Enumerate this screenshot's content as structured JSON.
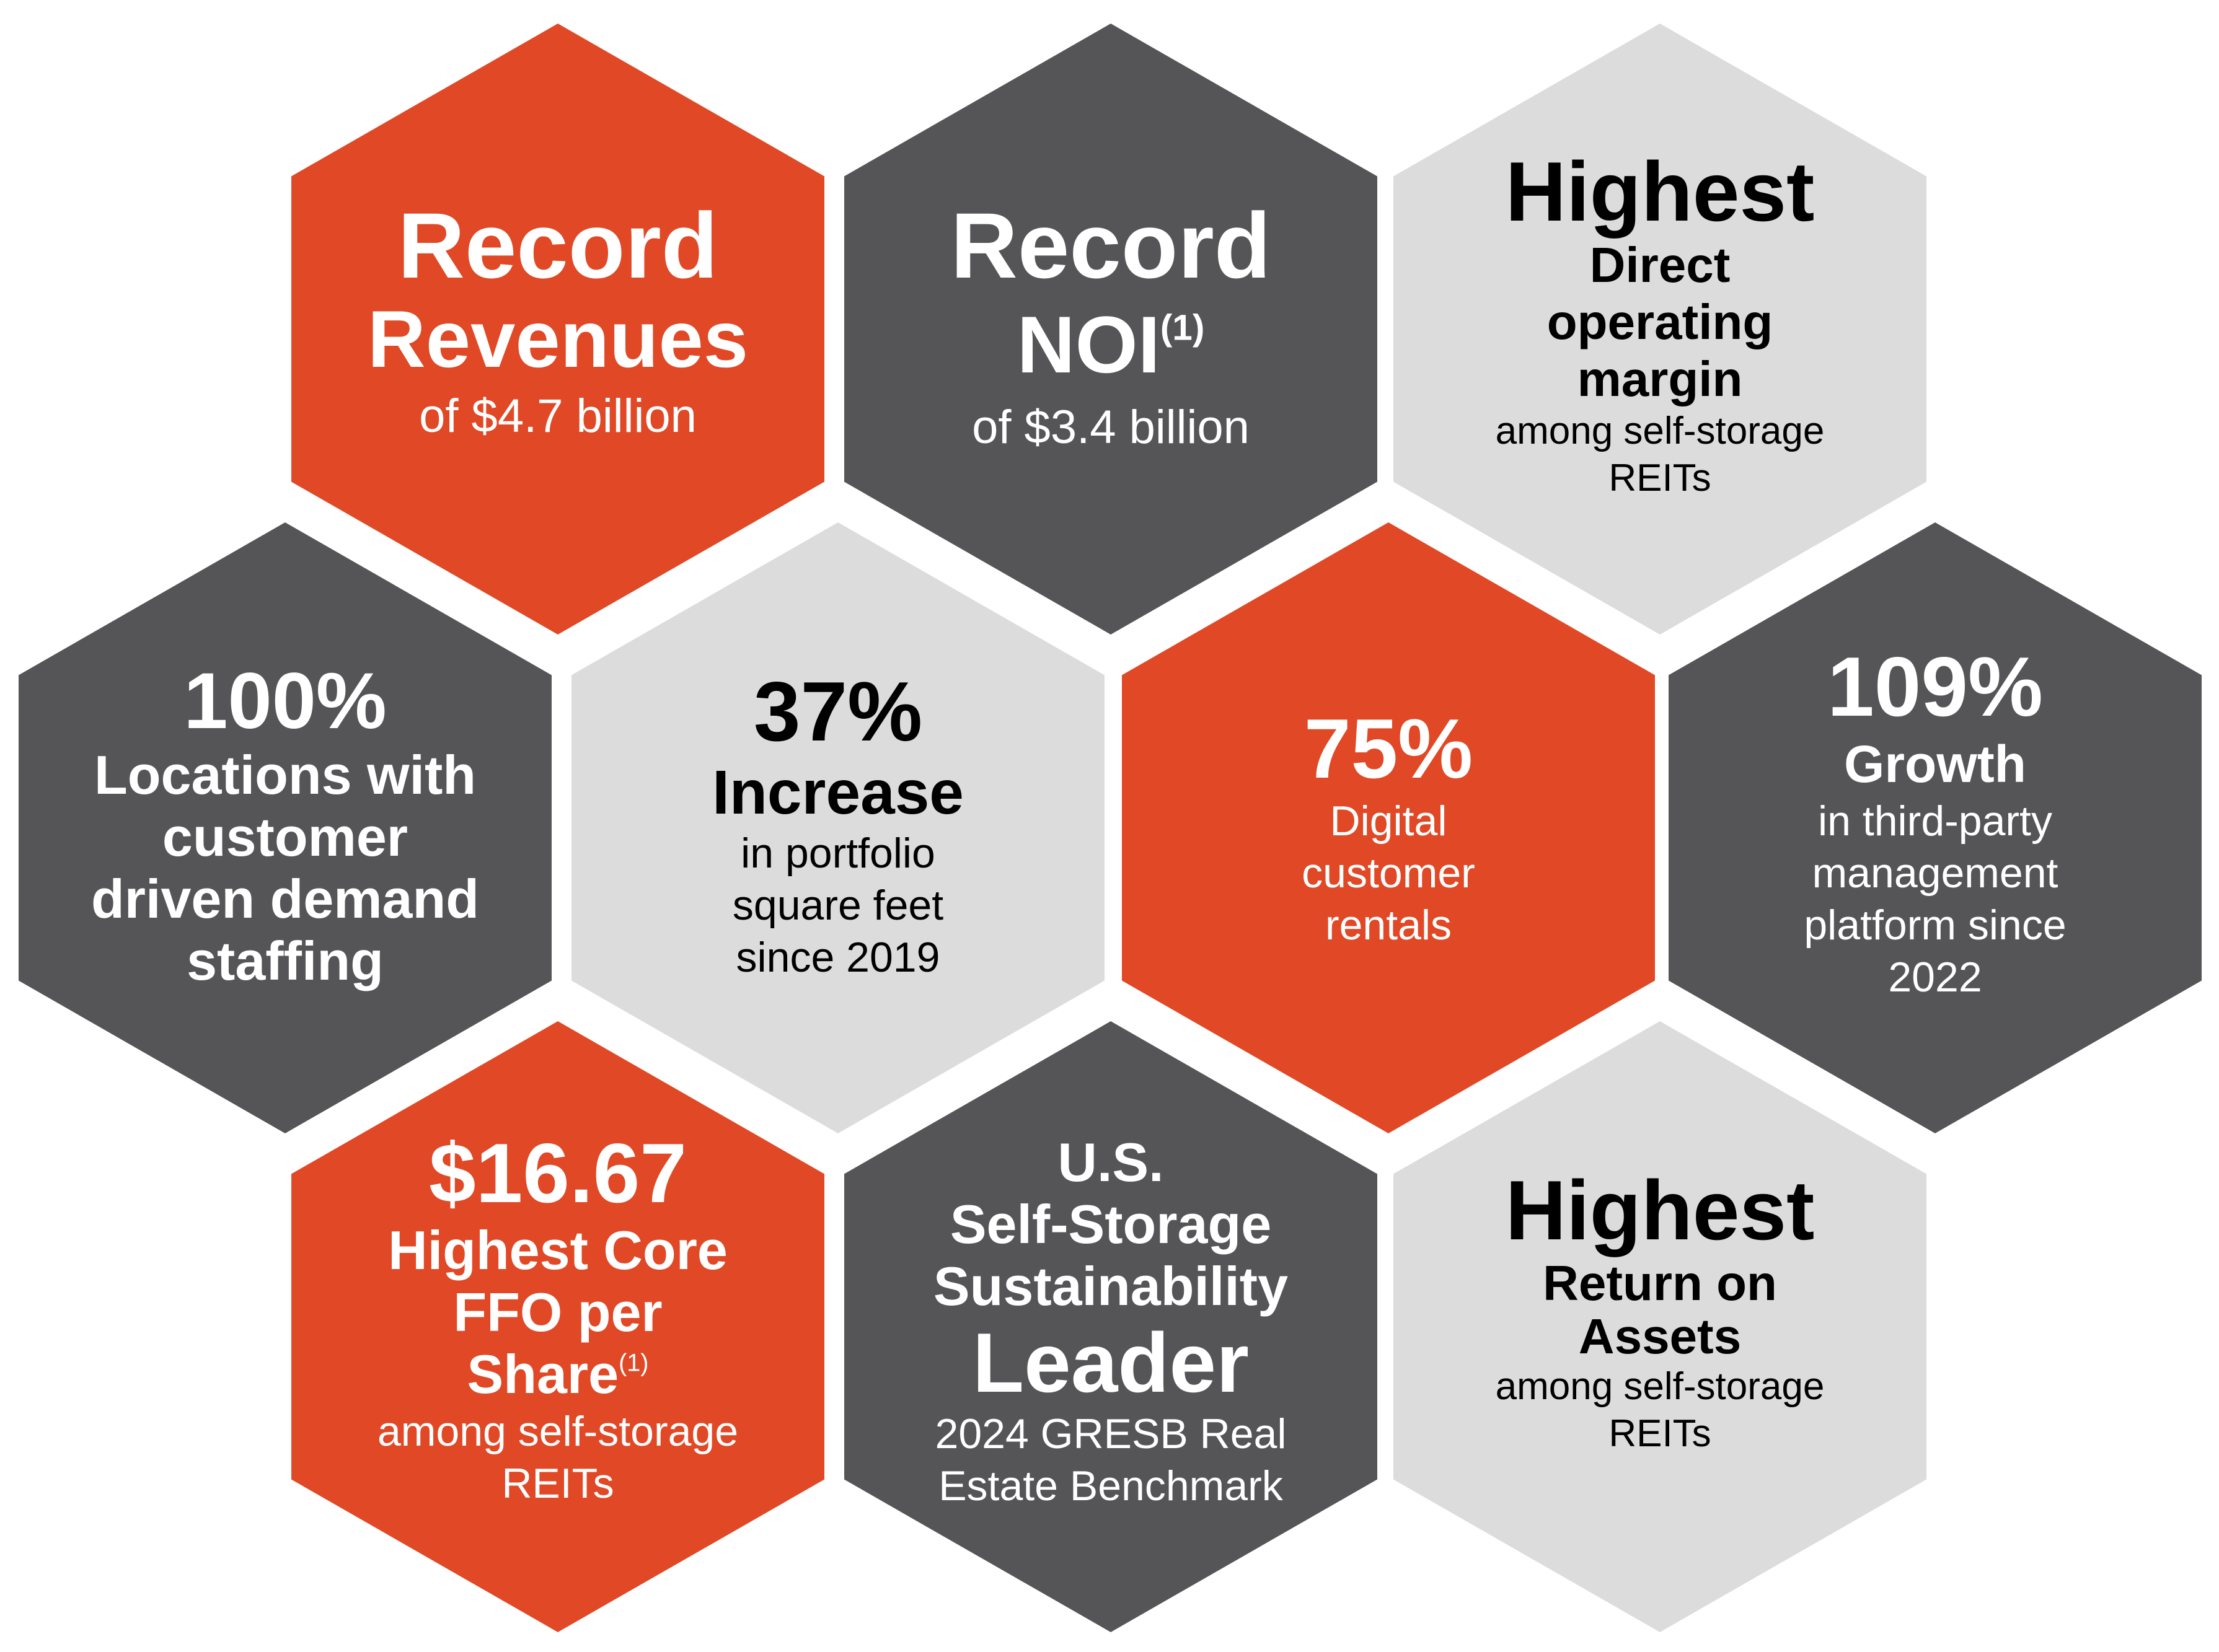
{
  "colors": {
    "orange": "#e04826",
    "dark": "#555557",
    "light": "#dcdcdd",
    "white": "#ffffff",
    "black": "#000000"
  },
  "hexagons": {
    "record_revenues": {
      "line1": "Record",
      "line2": "Revenues",
      "line3": "of $4.7 billion"
    },
    "record_noi": {
      "line1": "Record",
      "line2": "NOI",
      "footnote": "(1)",
      "line3": "of $3.4 billion"
    },
    "highest_margin": {
      "line1": "Highest",
      "line2": "Direct",
      "line3": "operating",
      "line4": "margin",
      "line5": "among self-storage",
      "line6": "REITs"
    },
    "locations_staffing": {
      "line1": "100%",
      "line2": "Locations with",
      "line3": "customer",
      "line4": "driven demand",
      "line5": "staffing"
    },
    "portfolio_increase": {
      "line1": "37%",
      "line2": "Increase",
      "line3": "in portfolio",
      "line4": "square feet",
      "line5": "since 2019"
    },
    "digital_rentals": {
      "line1": "75%",
      "line2": "Digital",
      "line3": "customer",
      "line4": "rentals"
    },
    "third_party_growth": {
      "line1": "109%",
      "line2": "Growth",
      "line3": "in third-party",
      "line4": "management",
      "line5": "platform since",
      "line6": "2022"
    },
    "core_ffo": {
      "line1": "$16.67",
      "line2": "Highest Core",
      "line3": "FFO per",
      "line4": "Share",
      "footnote": "(1)",
      "line5": "among self-storage",
      "line6": "REITs"
    },
    "sustainability_leader": {
      "line1": "U.S.",
      "line2": "Self-Storage",
      "line3": "Sustainability",
      "line4": "Leader",
      "line5": "2024 GRESB Real",
      "line6": "Estate Benchmark"
    },
    "highest_roa": {
      "line1": "Highest",
      "line2": "Return on",
      "line3": "Assets",
      "line4": "among self-storage",
      "line5": "REITs"
    }
  }
}
